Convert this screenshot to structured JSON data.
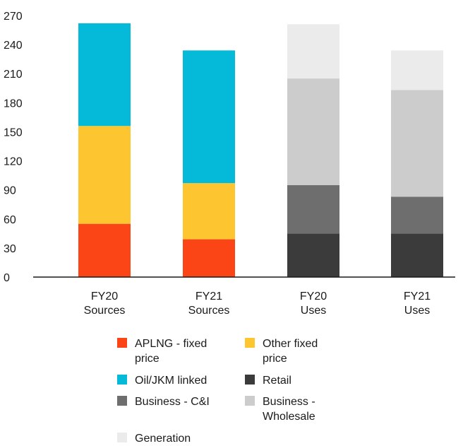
{
  "chart_data": {
    "type": "bar",
    "stacked": true,
    "title": "",
    "xlabel": "",
    "ylabel": "",
    "ylim": [
      0,
      270
    ],
    "yticks": [
      "0",
      "30",
      "60",
      "90",
      "120",
      "150",
      "180",
      "210",
      "240",
      "270"
    ],
    "categories": [
      [
        "FY20",
        "Sources"
      ],
      [
        "FY21",
        "Sources"
      ],
      [
        "FY20",
        "Uses"
      ],
      [
        "FY21",
        "Uses"
      ]
    ],
    "grid": false,
    "legend_position": "bottom",
    "series": [
      {
        "name": "APLNG - fixed price",
        "label_lines": [
          "APLNG - fixed",
          "price"
        ],
        "color": "#fc4517",
        "values": [
          55,
          39,
          0,
          0
        ]
      },
      {
        "name": "Other fixed price",
        "label_lines": [
          "Other fixed",
          "price"
        ],
        "color": "#fdc631",
        "values": [
          101,
          58,
          0,
          0
        ]
      },
      {
        "name": "Oil/JKM linked",
        "label_lines": [
          "Oil/JKM linked"
        ],
        "color": "#05b9d9",
        "values": [
          106,
          137,
          0,
          0
        ]
      },
      {
        "name": "Retail",
        "label_lines": [
          "Retail"
        ],
        "color": "#3b3b3b",
        "values": [
          0,
          0,
          45,
          45
        ]
      },
      {
        "name": "Business - C&I",
        "label_lines": [
          "Business - C&I"
        ],
        "color": "#6e6e6e",
        "values": [
          0,
          0,
          50,
          38
        ]
      },
      {
        "name": "Business - Wholesale",
        "label_lines": [
          "Business -",
          "Wholesale"
        ],
        "color": "#cccccc",
        "values": [
          0,
          0,
          110,
          110
        ]
      },
      {
        "name": "Generation",
        "label_lines": [
          "Generation"
        ],
        "color": "#ebebeb",
        "values": [
          0,
          0,
          56,
          41
        ]
      }
    ]
  }
}
